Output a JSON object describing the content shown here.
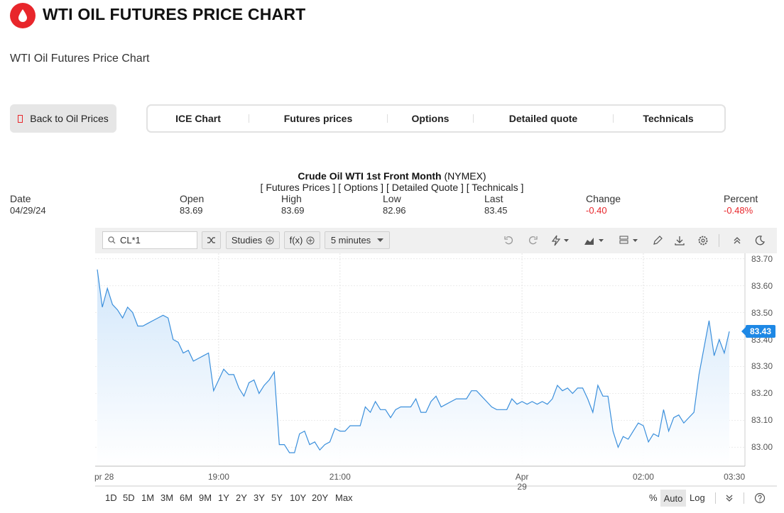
{
  "header": {
    "title": "WTI OIL FUTURES PRICE CHART",
    "subtitle": "WTI Oil Futures Price Chart",
    "logo_icon": "oil-drop-icon"
  },
  "back_button": {
    "label": "Back to Oil Prices"
  },
  "tabs": [
    "ICE Chart",
    "Futures prices",
    "Options",
    "Detailed quote",
    "Technicals"
  ],
  "quote": {
    "title_bold": "Crude Oil WTI 1st Front Month",
    "title_exchange": "(NYMEX)",
    "links": "[ Futures Prices ] [ Options ] [ Detailed Quote ] [ Technicals ]",
    "labels": [
      "Date",
      "Open",
      "High",
      "Low",
      "Last",
      "Change",
      "Percent"
    ],
    "values": [
      "04/29/24",
      "83.69",
      "83.69",
      "82.96",
      "83.45",
      "-0.40",
      "-0.48%"
    ]
  },
  "toolbar": {
    "symbol": "CL*1",
    "studies_label": "Studies",
    "fx_label": "f(x)",
    "interval_label": "5 minutes",
    "icons": [
      "shuffle-icon",
      "undo-icon",
      "redo-icon",
      "lightning-icon",
      "chart-type-icon",
      "layout-icon",
      "pencil-icon",
      "download-icon",
      "settings-icon",
      "collapse-icon",
      "dark-mode-icon"
    ]
  },
  "colors": {
    "line": "#3a8fdc",
    "fill_top": "#cfe5fa",
    "tag": "#1e88e5",
    "negative": "#e8262b",
    "brand": "#e8262b"
  },
  "chart_data": {
    "type": "area",
    "title": "",
    "xlabel": "",
    "ylabel": "",
    "ylim": [
      82.93,
      83.72
    ],
    "grid": true,
    "y_ticks": [
      "83.70",
      "83.60",
      "83.50",
      "83.40",
      "83.30",
      "83.20",
      "83.10",
      "83.00"
    ],
    "x_ticks": [
      {
        "label": "pr 28",
        "idx": 0
      },
      {
        "label": "19:00",
        "idx": 24
      },
      {
        "label": "21:00",
        "idx": 48
      },
      {
        "label": "Apr 29",
        "idx": 84
      },
      {
        "label": "02:00",
        "idx": 108
      },
      {
        "label": "03:30",
        "idx": 126
      }
    ],
    "last_value_label": "83.43",
    "series": [
      {
        "values": [
          83.66,
          83.52,
          83.59,
          83.53,
          83.51,
          83.48,
          83.52,
          83.5,
          83.45,
          83.45,
          83.46,
          83.47,
          83.48,
          83.49,
          83.48,
          83.4,
          83.39,
          83.35,
          83.36,
          83.32,
          83.33,
          83.34,
          83.35,
          83.21,
          83.25,
          83.29,
          83.27,
          83.27,
          83.22,
          83.19,
          83.24,
          83.25,
          83.2,
          83.23,
          83.25,
          83.28,
          83.01,
          83.01,
          82.98,
          82.98,
          83.05,
          83.06,
          83.01,
          83.02,
          82.99,
          83.01,
          83.02,
          83.07,
          83.06,
          83.06,
          83.08,
          83.08,
          83.08,
          83.15,
          83.13,
          83.17,
          83.14,
          83.14,
          83.11,
          83.14,
          83.15,
          83.15,
          83.15,
          83.18,
          83.13,
          83.13,
          83.17,
          83.19,
          83.15,
          83.16,
          83.17,
          83.18,
          83.18,
          83.18,
          83.21,
          83.21,
          83.19,
          83.17,
          83.15,
          83.14,
          83.14,
          83.14,
          83.18,
          83.16,
          83.17,
          83.16,
          83.17,
          83.16,
          83.17,
          83.16,
          83.18,
          83.23,
          83.21,
          83.22,
          83.2,
          83.22,
          83.22,
          83.18,
          83.13,
          83.23,
          83.19,
          83.19,
          83.06,
          83.0,
          83.04,
          83.03,
          83.06,
          83.09,
          83.08,
          83.02,
          83.05,
          83.04,
          83.14,
          83.06,
          83.11,
          83.12,
          83.09,
          83.11,
          83.13,
          83.27,
          83.37,
          83.47,
          83.34,
          83.4,
          83.35,
          83.43
        ]
      }
    ]
  },
  "range_buttons": [
    "1D",
    "5D",
    "1M",
    "3M",
    "6M",
    "9M",
    "1Y",
    "2Y",
    "3Y",
    "5Y",
    "10Y",
    "20Y",
    "Max"
  ],
  "scale_buttons": {
    "percent": "%",
    "auto": "Auto",
    "log": "Log"
  }
}
